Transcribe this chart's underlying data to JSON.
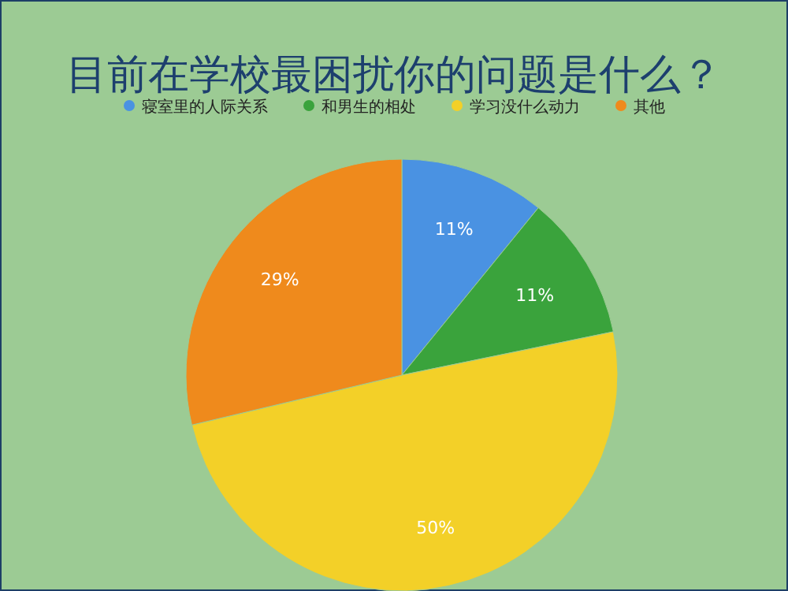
{
  "chart_data": {
    "type": "pie",
    "title": "目前在学校最困扰你的问题是什么？",
    "legend": "top",
    "value_labels": [
      "11%",
      "11%",
      "50%",
      "29%"
    ],
    "categories": [
      "寝室里的人际关系",
      "和男生的相处",
      "学习没什么动力",
      "其他"
    ],
    "values": [
      11,
      11,
      50,
      29
    ],
    "colors": [
      "#4a92e2",
      "#3aa33c",
      "#f3d028",
      "#ef8a1c"
    ]
  }
}
